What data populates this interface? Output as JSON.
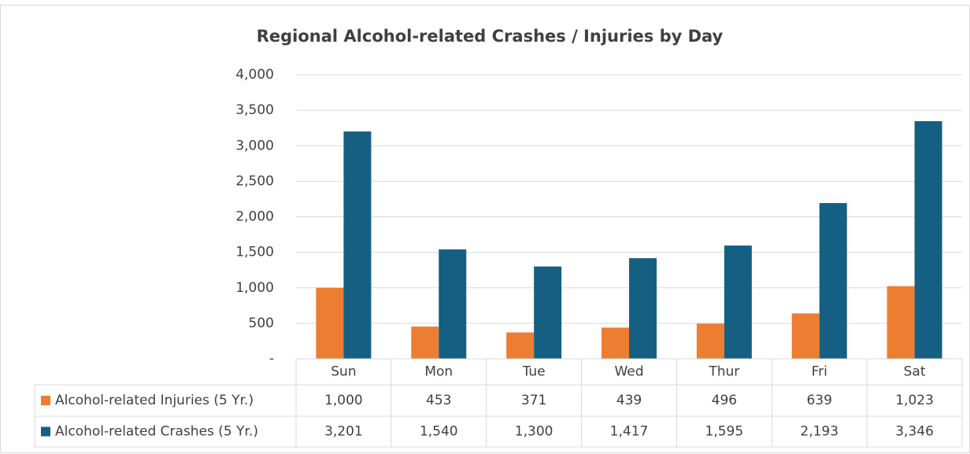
{
  "chart_data": {
    "type": "bar",
    "title": "Regional Alcohol-related Crashes / Injuries by Day",
    "categories": [
      "Sun",
      "Mon",
      "Tue",
      "Wed",
      "Thur",
      "Fri",
      "Sat"
    ],
    "series": [
      {
        "name": "Alcohol-related Injuries (5 Yr.)",
        "color": "#ed7d31",
        "values": [
          1000,
          453,
          371,
          439,
          496,
          639,
          1023
        ],
        "value_labels": [
          "1,000",
          "453",
          "371",
          "439",
          "496",
          "639",
          "1,023"
        ]
      },
      {
        "name": "Alcohol-related Crashes (5 Yr.)",
        "color": "#156082",
        "values": [
          3201,
          1540,
          1300,
          1417,
          1595,
          2193,
          3346
        ],
        "value_labels": [
          "3,201",
          "1,540",
          "1,300",
          "1,417",
          "1,595",
          "2,193",
          "3,346"
        ]
      }
    ],
    "ylim": [
      0,
      4000
    ],
    "yticks": [
      {
        "value": 0,
        "label": "-"
      },
      500,
      {
        "value": 1000,
        "label": "1,000"
      },
      {
        "value": 1500,
        "label": "1,500"
      },
      {
        "value": 2000,
        "label": "2,000"
      },
      {
        "value": 2500,
        "label": "2,500"
      },
      {
        "value": 3000,
        "label": "3,000"
      },
      {
        "value": 3500,
        "label": "3,500"
      },
      {
        "value": 4000,
        "label": "4,000"
      }
    ],
    "grid": true
  }
}
